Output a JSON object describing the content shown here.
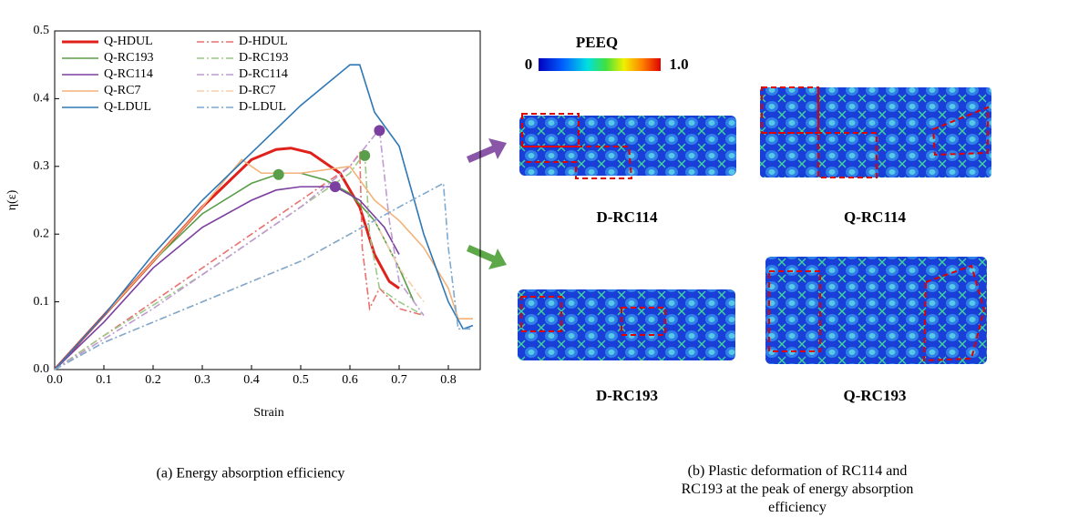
{
  "chart_data": {
    "type": "line",
    "x_label": "Strain",
    "y_label": "η(ε)",
    "caption": "(a) Energy absorption efficiency",
    "xlim": [
      0,
      0.85
    ],
    "ylim": [
      0,
      0.5
    ],
    "xticks": [
      {
        "value": 0,
        "label": "0.0"
      },
      0.1,
      0.2,
      0.3,
      0.4,
      0.5,
      0.6,
      0.7,
      0.8
    ],
    "yticks": [
      {
        "value": 0,
        "label": "0.0"
      },
      0.1,
      0.2,
      0.3,
      0.4,
      0.5
    ],
    "series": [
      {
        "name": "Q-HDUL",
        "color": "#e0201b",
        "dash": false,
        "x": [
          0,
          0.1,
          0.2,
          0.3,
          0.4,
          0.45,
          0.48,
          0.52,
          0.58,
          0.62,
          0.65,
          0.68,
          0.7
        ],
        "values": [
          0,
          0.08,
          0.16,
          0.24,
          0.31,
          0.325,
          0.327,
          0.32,
          0.29,
          0.24,
          0.17,
          0.13,
          0.12
        ]
      },
      {
        "name": "D-HDUL",
        "color": "#e87070",
        "dash": true,
        "x": [
          0,
          0.1,
          0.2,
          0.3,
          0.4,
          0.5,
          0.6,
          0.62,
          0.625,
          0.64,
          0.66,
          0.7,
          0.75
        ],
        "values": [
          0,
          0.05,
          0.1,
          0.15,
          0.2,
          0.25,
          0.3,
          0.32,
          0.18,
          0.09,
          0.12,
          0.09,
          0.08
        ]
      },
      {
        "name": "Q-RC193",
        "color": "#5a9e4a",
        "dash": false,
        "x": [
          0,
          0.1,
          0.2,
          0.3,
          0.4,
          0.46,
          0.5,
          0.55,
          0.6,
          0.65,
          0.7,
          0.73
        ],
        "values": [
          0,
          0.08,
          0.16,
          0.23,
          0.275,
          0.29,
          0.29,
          0.28,
          0.26,
          0.22,
          0.15,
          0.1
        ]
      },
      {
        "name": "D-RC193",
        "color": "#9cc98a",
        "dash": true,
        "x": [
          0,
          0.1,
          0.2,
          0.3,
          0.4,
          0.5,
          0.6,
          0.63,
          0.64,
          0.66,
          0.7,
          0.75
        ],
        "values": [
          0,
          0.05,
          0.095,
          0.14,
          0.19,
          0.24,
          0.29,
          0.32,
          0.2,
          0.12,
          0.1,
          0.08
        ]
      },
      {
        "name": "Q-RC114",
        "color": "#7b3fa0",
        "dash": false,
        "x": [
          0,
          0.1,
          0.2,
          0.3,
          0.4,
          0.45,
          0.5,
          0.57,
          0.62,
          0.67,
          0.7
        ],
        "values": [
          0,
          0.07,
          0.15,
          0.21,
          0.25,
          0.265,
          0.27,
          0.27,
          0.25,
          0.21,
          0.17
        ]
      },
      {
        "name": "D-RC114",
        "color": "#c09ad0",
        "dash": true,
        "x": [
          0,
          0.1,
          0.2,
          0.3,
          0.4,
          0.5,
          0.6,
          0.66,
          0.68,
          0.7,
          0.75
        ],
        "values": [
          0,
          0.045,
          0.09,
          0.14,
          0.19,
          0.24,
          0.3,
          0.355,
          0.22,
          0.13,
          0.08
        ]
      },
      {
        "name": "Q-RC7",
        "color": "#f2b27a",
        "dash": false,
        "x": [
          0,
          0.1,
          0.2,
          0.3,
          0.38,
          0.42,
          0.5,
          0.6,
          0.65,
          0.7,
          0.75,
          0.8,
          0.82,
          0.85
        ],
        "values": [
          0,
          0.08,
          0.16,
          0.24,
          0.31,
          0.29,
          0.29,
          0.3,
          0.25,
          0.22,
          0.18,
          0.12,
          0.075,
          0.075
        ]
      },
      {
        "name": "D-RC7",
        "color": "#f5cfae",
        "dash": true,
        "x": [
          0,
          0.1,
          0.2,
          0.3,
          0.4,
          0.5,
          0.6,
          0.65,
          0.7,
          0.75
        ],
        "values": [
          0,
          0.04,
          0.07,
          0.1,
          0.13,
          0.16,
          0.2,
          0.22,
          0.15,
          0.1
        ]
      },
      {
        "name": "Q-LDUL",
        "color": "#2f78b5",
        "dash": false,
        "x": [
          0,
          0.1,
          0.2,
          0.3,
          0.4,
          0.5,
          0.55,
          0.6,
          0.62,
          0.65,
          0.7,
          0.75,
          0.8,
          0.83,
          0.85
        ],
        "values": [
          0,
          0.08,
          0.17,
          0.25,
          0.32,
          0.39,
          0.42,
          0.45,
          0.45,
          0.38,
          0.33,
          0.2,
          0.1,
          0.06,
          0.065
        ]
      },
      {
        "name": "D-LDUL",
        "color": "#7fa9cf",
        "dash": true,
        "x": [
          0,
          0.1,
          0.2,
          0.3,
          0.4,
          0.5,
          0.6,
          0.7,
          0.79,
          0.8,
          0.82,
          0.85
        ],
        "values": [
          0,
          0.04,
          0.07,
          0.1,
          0.13,
          0.16,
          0.2,
          0.24,
          0.275,
          0.18,
          0.06,
          0.06
        ]
      }
    ],
    "points": [
      {
        "x": 0.455,
        "y": 0.288,
        "color": "#5a9e4a"
      },
      {
        "x": 0.57,
        "y": 0.27,
        "color": "#7b3fa0"
      },
      {
        "x": 0.63,
        "y": 0.316,
        "color": "#5a9e4a"
      },
      {
        "x": 0.66,
        "y": 0.353,
        "color": "#7b3fa0"
      }
    ]
  },
  "figure": {
    "colorbar": {
      "title": "PEEQ",
      "ticks": [
        0,
        {
          "value": 1,
          "label": "1.0"
        }
      ]
    },
    "panels": [
      {
        "label": "D-RC114"
      },
      {
        "label": "Q-RC114"
      },
      {
        "label": "D-RC193"
      },
      {
        "label": "Q-RC193"
      }
    ],
    "caption": "(b) Plastic deformation of RC114 and RC193 at the peak of energy absorption efficiency"
  }
}
